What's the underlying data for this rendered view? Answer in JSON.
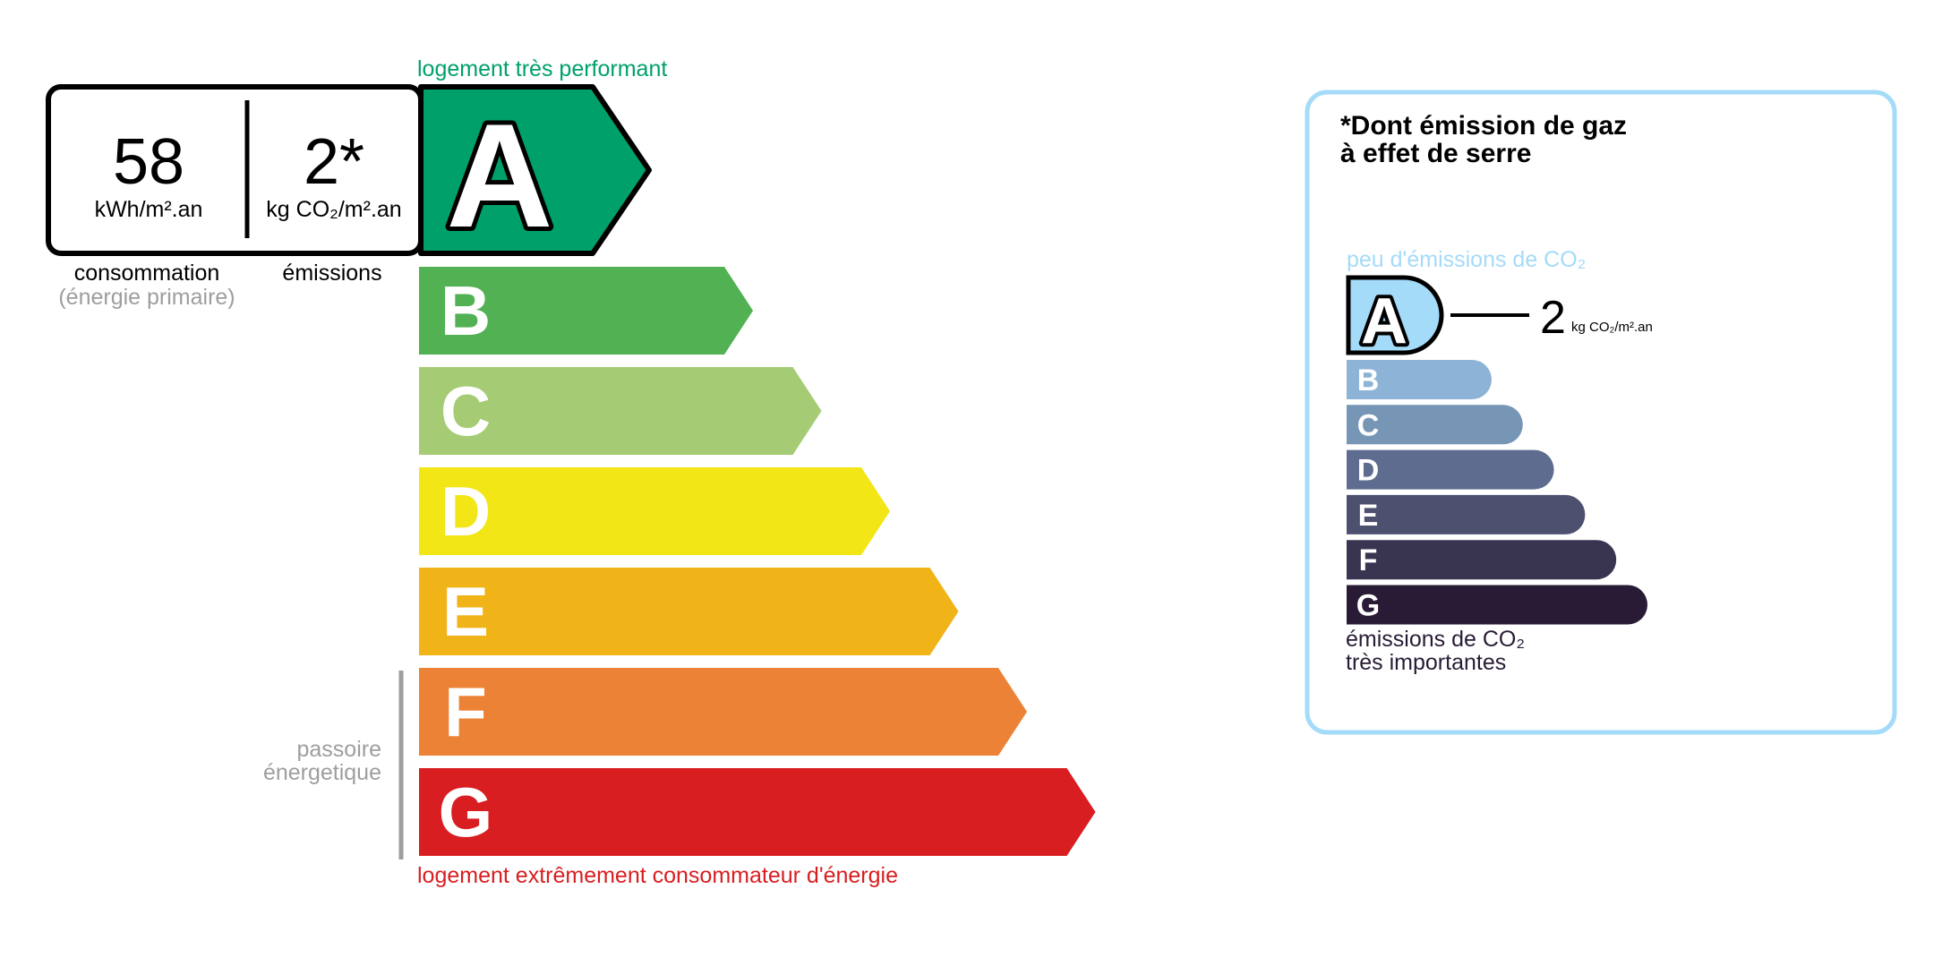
{
  "dpe": {
    "top_label": "logement très performant",
    "bottom_label": "logement extrêmement consommateur d'énergie",
    "consumption_value": "58",
    "consumption_unit": "kWh/m².an",
    "emission_value": "2*",
    "emission_unit": "kg CO₂/m².an",
    "consumption_label": "consommation",
    "consumption_sublabel": "(énergie primaire)",
    "emission_label": "émissions",
    "passoire_line1": "passoire",
    "passoire_line2": "énergetique",
    "current_class": "A",
    "classes": [
      {
        "letter": "A",
        "color": "#00a06a"
      },
      {
        "letter": "B",
        "color": "#52b153"
      },
      {
        "letter": "C",
        "color": "#a5cc74"
      },
      {
        "letter": "D",
        "color": "#f2e617"
      },
      {
        "letter": "E",
        "color": "#f0b418"
      },
      {
        "letter": "F",
        "color": "#ec8235"
      },
      {
        "letter": "G",
        "color": "#d81e20"
      }
    ],
    "top_label_color": "#00a06a",
    "bottom_label_color": "#d81e20"
  },
  "ges": {
    "title_line1": "*Dont émission de gaz",
    "title_line2": "à effet de serre",
    "top_label": "peu d'émissions de CO₂",
    "bottom_line1": "émissions de CO₂",
    "bottom_line2": "très importantes",
    "value": "2",
    "unit": "kg CO₂/m².an",
    "current_class": "A",
    "border_color": "#a4dbf8",
    "classes": [
      {
        "letter": "A",
        "color": "#a4dbf8"
      },
      {
        "letter": "B",
        "color": "#8db3d6"
      },
      {
        "letter": "C",
        "color": "#7796b6"
      },
      {
        "letter": "D",
        "color": "#5e6d8f"
      },
      {
        "letter": "E",
        "color": "#4e5070"
      },
      {
        "letter": "F",
        "color": "#393551"
      },
      {
        "letter": "G",
        "color": "#291b35"
      }
    ]
  }
}
